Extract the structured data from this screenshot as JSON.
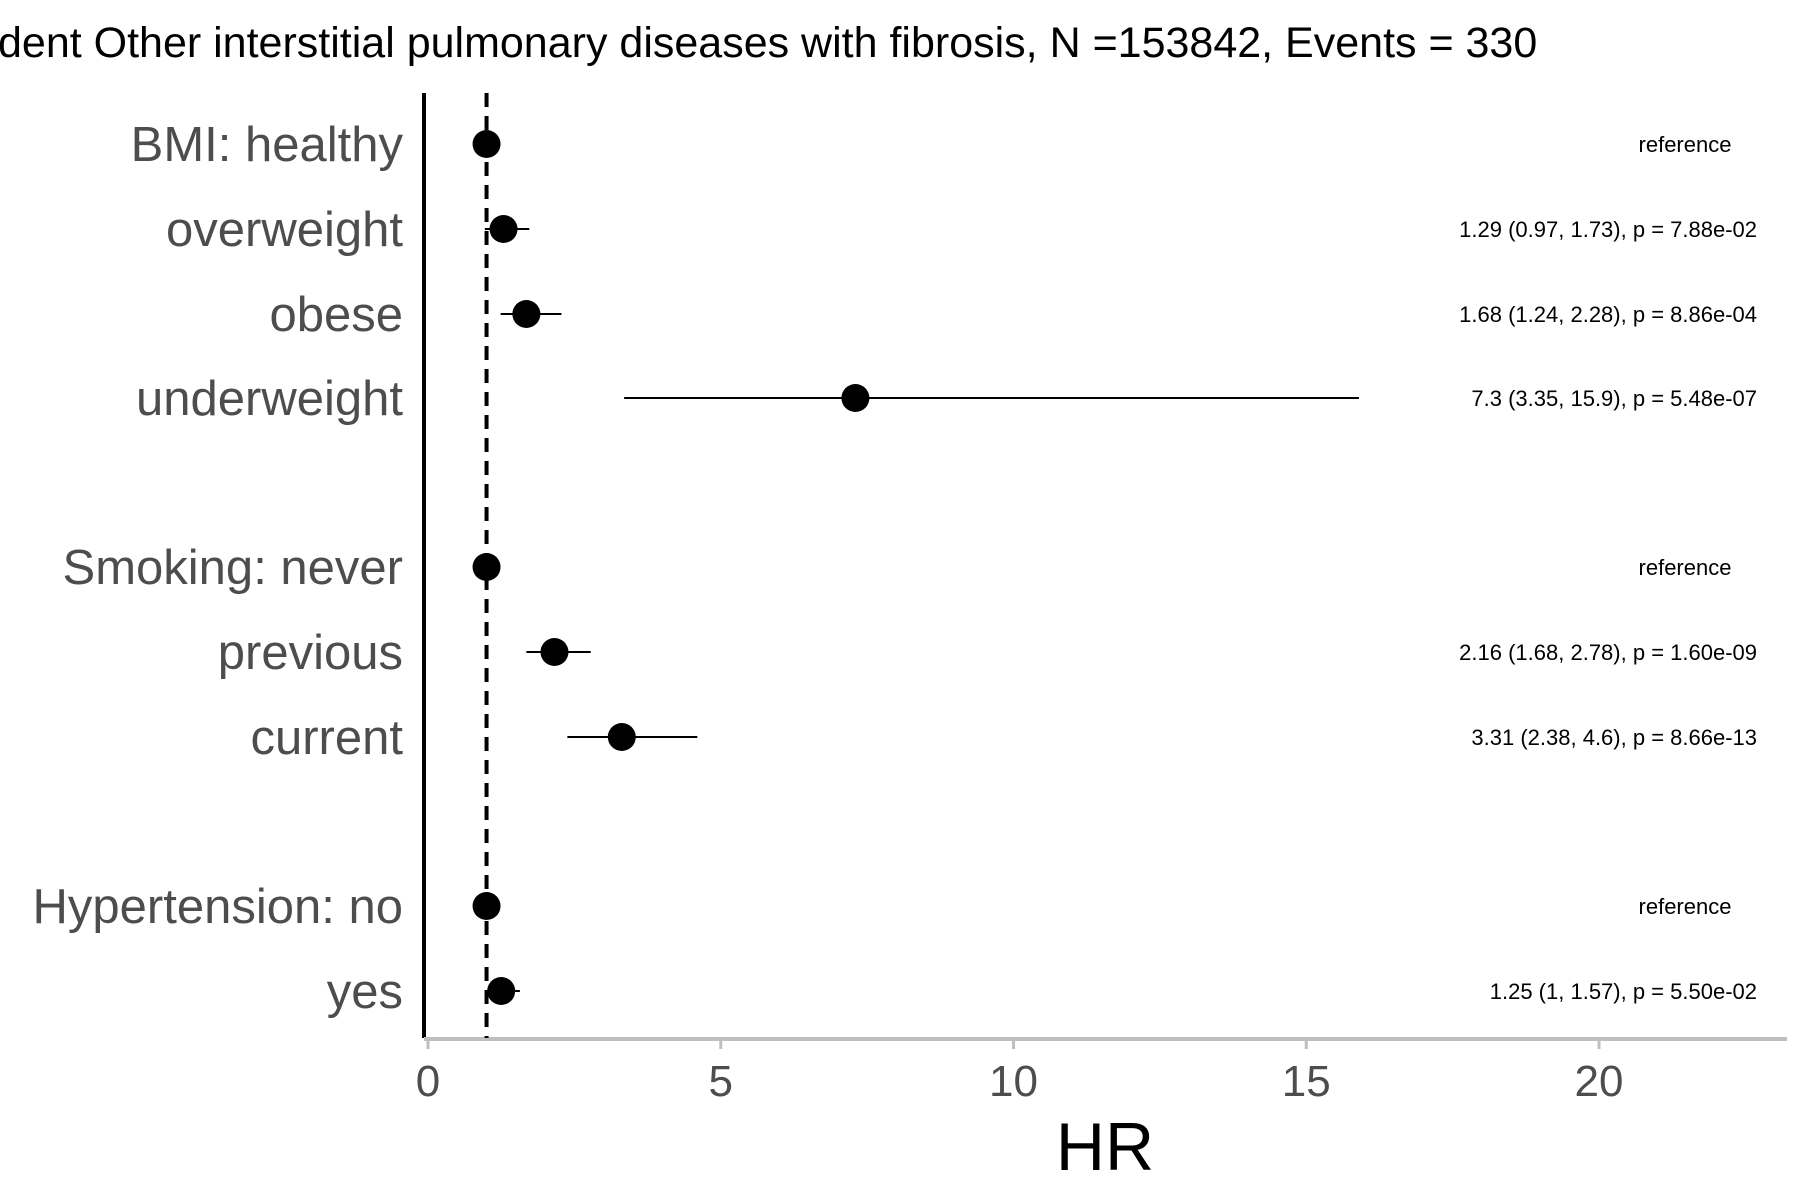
{
  "chart_data": {
    "type": "scatter",
    "title": "dent Other interstitial pulmonary diseases with fibrosis, N =153842, Events = 330",
    "xlabel": "HR",
    "ylabel": "",
    "xlim": [
      0,
      23.2
    ],
    "xticks": [
      0,
      5,
      10,
      15,
      20
    ],
    "xtick_labels": [
      "0",
      "5",
      "10",
      "15",
      "20"
    ],
    "reference_line_x": 1,
    "grid": false,
    "legend": "none",
    "rows": [
      {
        "label": "BMI: healthy",
        "hr": 1,
        "lo": null,
        "hi": null,
        "annotation": "reference"
      },
      {
        "label": "overweight",
        "hr": 1.29,
        "lo": 0.97,
        "hi": 1.73,
        "annotation": "1.29 (0.97, 1.73), p = 7.88e-02"
      },
      {
        "label": "obese",
        "hr": 1.68,
        "lo": 1.24,
        "hi": 2.28,
        "annotation": "1.68 (1.24, 2.28), p = 8.86e-04"
      },
      {
        "label": "underweight",
        "hr": 7.3,
        "lo": 3.35,
        "hi": 15.9,
        "annotation": "7.3 (3.35, 15.9), p = 5.48e-07"
      },
      {
        "label": "Smoking: never",
        "hr": 1,
        "lo": null,
        "hi": null,
        "annotation": "reference"
      },
      {
        "label": "previous",
        "hr": 2.16,
        "lo": 1.68,
        "hi": 2.78,
        "annotation": "2.16 (1.68, 2.78), p = 1.60e-09"
      },
      {
        "label": "current",
        "hr": 3.31,
        "lo": 2.38,
        "hi": 4.6,
        "annotation": "3.31 (2.38, 4.6), p = 8.66e-13"
      },
      {
        "label": "Hypertension: no",
        "hr": 1,
        "lo": null,
        "hi": null,
        "annotation": "reference"
      },
      {
        "label": "yes",
        "hr": 1.25,
        "lo": 1,
        "hi": 1.57,
        "annotation": "1.25 (1, 1.57), p = 5.50e-02"
      }
    ],
    "colors": {
      "point": "#000000",
      "row_label": "#4d4d4d",
      "axis": "#bfbfbf"
    }
  }
}
